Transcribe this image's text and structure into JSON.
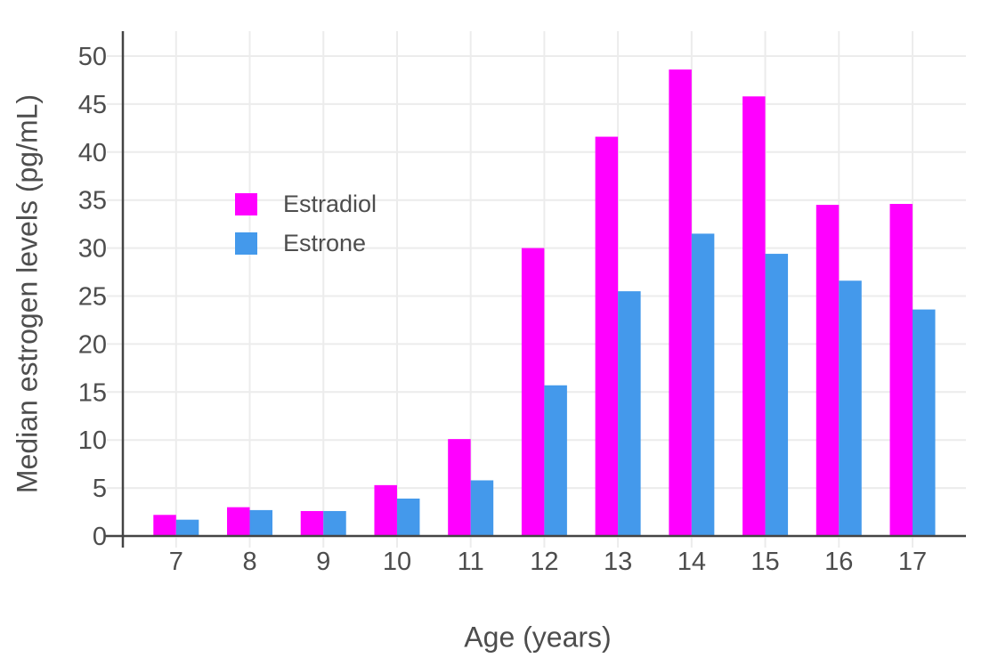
{
  "chart_data": {
    "type": "bar",
    "title": "",
    "xlabel": "Age (years)",
    "ylabel": "Median estrogen levels (pg/mL)",
    "categories": [
      7,
      8,
      9,
      10,
      11,
      12,
      13,
      14,
      15,
      16,
      17
    ],
    "series": [
      {
        "name": "Estradiol",
        "color": "#FF00FF",
        "values": [
          2.2,
          3.0,
          2.6,
          5.3,
          10.1,
          30.0,
          41.6,
          48.6,
          45.8,
          34.5,
          34.6
        ]
      },
      {
        "name": "Estrone",
        "color": "#4499EB",
        "values": [
          1.7,
          2.7,
          2.6,
          3.9,
          5.8,
          15.7,
          25.5,
          31.5,
          29.4,
          26.6,
          23.6
        ]
      }
    ],
    "ylim": [
      0,
      52.6
    ],
    "yticks": [
      0,
      5,
      10,
      15,
      20,
      25,
      30,
      35,
      40,
      45,
      50
    ],
    "grid": true,
    "legend_position": "inside-top-left",
    "colors": {
      "axis": "#444444",
      "grid": "#ECECEC",
      "text": "#4D4D4D",
      "background": "#FFFFFF"
    }
  }
}
